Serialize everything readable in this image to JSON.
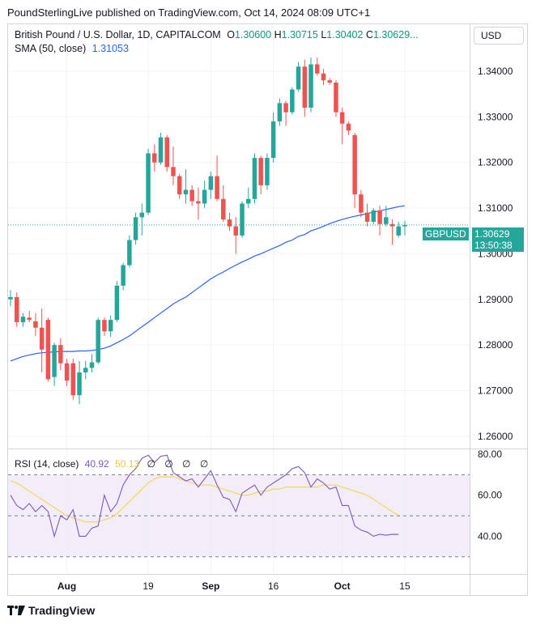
{
  "header": {
    "attribution": "PoundSterlingLive published on TradingView.com, Oct 14, 2024 08:09 UTC+1"
  },
  "legend": {
    "symbol": "British Pound / U.S. Dollar, 1D, CAPITALCOM",
    "o_label": "O",
    "o_value": "1.30600",
    "h_label": "H",
    "h_value": "1.30715",
    "l_label": "L",
    "l_value": "1.30402",
    "c_label": "C",
    "c_value": "1.30629...",
    "sma_label": "SMA (50, close)",
    "sma_value": "1.31053",
    "rsi_label": "RSI (14, close)",
    "rsi_value": "40.92",
    "rsi_ma_value": "50.13",
    "hidden_marks": "∅ ∅ ∅ ∅"
  },
  "currency_button": "USD",
  "price_tag": {
    "symbol": "GBPUSD",
    "price": "1.30629",
    "countdown": "13:50:38"
  },
  "footer": {
    "brand": "TradingView"
  },
  "colors": {
    "up": "#26a69a",
    "down": "#ef5350",
    "sma": "#2962ff",
    "rsi": "#7e57c2",
    "rsi_ma": "#f2d64c",
    "rsi_band": "#ede7f6"
  },
  "chart_data": [
    {
      "type": "candlestick",
      "title": "British Pound / U.S. Dollar, 1D, CAPITALCOM",
      "y_ticks": [
        "1.34000",
        "1.33000",
        "1.32000",
        "1.31000",
        "1.30000",
        "1.29000",
        "1.28000",
        "1.27000",
        "1.26000"
      ],
      "ylim": [
        1.2575,
        1.3485
      ],
      "x_ticks": [
        {
          "label": "Aug",
          "index": 9
        },
        {
          "label": "19",
          "index": 22
        },
        {
          "label": "Sep",
          "index": 32
        },
        {
          "label": "16",
          "index": 42
        },
        {
          "label": "Oct",
          "index": 53
        },
        {
          "label": "15",
          "index": 63
        }
      ],
      "candles": [
        {
          "o": 1.29,
          "h": 1.292,
          "l": 1.2885,
          "c": 1.2905
        },
        {
          "o": 1.2905,
          "h": 1.2915,
          "l": 1.284,
          "c": 1.285
        },
        {
          "o": 1.285,
          "h": 1.287,
          "l": 1.284,
          "c": 1.2862
        },
        {
          "o": 1.286,
          "h": 1.2875,
          "l": 1.285,
          "c": 1.2855
        },
        {
          "o": 1.2852,
          "h": 1.287,
          "l": 1.282,
          "c": 1.2838
        },
        {
          "o": 1.2838,
          "h": 1.288,
          "l": 1.274,
          "c": 1.279
        },
        {
          "o": 1.2855,
          "h": 1.286,
          "l": 1.272,
          "c": 1.2725
        },
        {
          "o": 1.273,
          "h": 1.2805,
          "l": 1.271,
          "c": 1.28
        },
        {
          "o": 1.28,
          "h": 1.2815,
          "l": 1.2745,
          "c": 1.276
        },
        {
          "o": 1.276,
          "h": 1.277,
          "l": 1.271,
          "c": 1.2722
        },
        {
          "o": 1.276,
          "h": 1.277,
          "l": 1.268,
          "c": 1.269
        },
        {
          "o": 1.269,
          "h": 1.2765,
          "l": 1.267,
          "c": 1.274
        },
        {
          "o": 1.274,
          "h": 1.2765,
          "l": 1.2725,
          "c": 1.275
        },
        {
          "o": 1.275,
          "h": 1.278,
          "l": 1.274,
          "c": 1.2762
        },
        {
          "o": 1.2762,
          "h": 1.286,
          "l": 1.2758,
          "c": 1.2855
        },
        {
          "o": 1.2855,
          "h": 1.286,
          "l": 1.282,
          "c": 1.283
        },
        {
          "o": 1.283,
          "h": 1.2865,
          "l": 1.2818,
          "c": 1.2855
        },
        {
          "o": 1.2855,
          "h": 1.294,
          "l": 1.285,
          "c": 1.293
        },
        {
          "o": 1.293,
          "h": 1.298,
          "l": 1.292,
          "c": 1.2975
        },
        {
          "o": 1.2975,
          "h": 1.304,
          "l": 1.297,
          "c": 1.303
        },
        {
          "o": 1.303,
          "h": 1.309,
          "l": 1.302,
          "c": 1.308
        },
        {
          "o": 1.308,
          "h": 1.311,
          "l": 1.304,
          "c": 1.309
        },
        {
          "o": 1.309,
          "h": 1.323,
          "l": 1.3085,
          "c": 1.322
        },
        {
          "o": 1.322,
          "h": 1.324,
          "l": 1.318,
          "c": 1.32
        },
        {
          "o": 1.32,
          "h": 1.3265,
          "l": 1.3195,
          "c": 1.3255
        },
        {
          "o": 1.3255,
          "h": 1.326,
          "l": 1.318,
          "c": 1.319
        },
        {
          "o": 1.319,
          "h": 1.3235,
          "l": 1.315,
          "c": 1.317
        },
        {
          "o": 1.317,
          "h": 1.3175,
          "l": 1.312,
          "c": 1.313
        },
        {
          "o": 1.313,
          "h": 1.3185,
          "l": 1.311,
          "c": 1.314
        },
        {
          "o": 1.314,
          "h": 1.315,
          "l": 1.3105,
          "c": 1.3115
        },
        {
          "o": 1.3115,
          "h": 1.3145,
          "l": 1.3075,
          "c": 1.311
        },
        {
          "o": 1.311,
          "h": 1.316,
          "l": 1.31,
          "c": 1.314
        },
        {
          "o": 1.314,
          "h": 1.318,
          "l": 1.312,
          "c": 1.317
        },
        {
          "o": 1.317,
          "h": 1.3215,
          "l": 1.3115,
          "c": 1.312
        },
        {
          "o": 1.312,
          "h": 1.315,
          "l": 1.307,
          "c": 1.3075
        },
        {
          "o": 1.3075,
          "h": 1.309,
          "l": 1.305,
          "c": 1.306
        },
        {
          "o": 1.306,
          "h": 1.308,
          "l": 1.3,
          "c": 1.304
        },
        {
          "o": 1.304,
          "h": 1.3115,
          "l": 1.3035,
          "c": 1.311
        },
        {
          "o": 1.311,
          "h": 1.3145,
          "l": 1.31,
          "c": 1.312
        },
        {
          "o": 1.312,
          "h": 1.322,
          "l": 1.311,
          "c": 1.321
        },
        {
          "o": 1.321,
          "h": 1.3215,
          "l": 1.313,
          "c": 1.315
        },
        {
          "o": 1.315,
          "h": 1.322,
          "l": 1.314,
          "c": 1.321
        },
        {
          "o": 1.321,
          "h": 1.331,
          "l": 1.32,
          "c": 1.329
        },
        {
          "o": 1.329,
          "h": 1.334,
          "l": 1.328,
          "c": 1.333
        },
        {
          "o": 1.333,
          "h": 1.3335,
          "l": 1.328,
          "c": 1.331
        },
        {
          "o": 1.331,
          "h": 1.3365,
          "l": 1.3305,
          "c": 1.336
        },
        {
          "o": 1.336,
          "h": 1.342,
          "l": 1.3355,
          "c": 1.341
        },
        {
          "o": 1.341,
          "h": 1.3425,
          "l": 1.33,
          "c": 1.332
        },
        {
          "o": 1.332,
          "h": 1.343,
          "l": 1.331,
          "c": 1.3415
        },
        {
          "o": 1.3415,
          "h": 1.343,
          "l": 1.339,
          "c": 1.3395
        },
        {
          "o": 1.3395,
          "h": 1.3405,
          "l": 1.337,
          "c": 1.338
        },
        {
          "o": 1.338,
          "h": 1.3385,
          "l": 1.337,
          "c": 1.3375
        },
        {
          "o": 1.3375,
          "h": 1.338,
          "l": 1.33,
          "c": 1.331
        },
        {
          "o": 1.331,
          "h": 1.332,
          "l": 1.324,
          "c": 1.3285
        },
        {
          "o": 1.3285,
          "h": 1.329,
          "l": 1.326,
          "c": 1.327
        },
        {
          "o": 1.326,
          "h": 1.3265,
          "l": 1.31,
          "c": 1.313
        },
        {
          "o": 1.313,
          "h": 1.314,
          "l": 1.308,
          "c": 1.309
        },
        {
          "o": 1.309,
          "h": 1.311,
          "l": 1.306,
          "c": 1.307
        },
        {
          "o": 1.307,
          "h": 1.31,
          "l": 1.3065,
          "c": 1.3095
        },
        {
          "o": 1.3095,
          "h": 1.3105,
          "l": 1.304,
          "c": 1.3065
        },
        {
          "o": 1.3065,
          "h": 1.3105,
          "l": 1.306,
          "c": 1.308
        },
        {
          "o": 1.3065,
          "h": 1.3075,
          "l": 1.302,
          "c": 1.306
        },
        {
          "o": 1.304,
          "h": 1.307,
          "l": 1.3035,
          "c": 1.306
        },
        {
          "o": 1.306,
          "h": 1.3072,
          "l": 1.304,
          "c": 1.3063
        }
      ],
      "sma": [
        1.2765,
        1.277,
        1.2775,
        1.2778,
        1.2781,
        1.2783,
        1.2784,
        1.2785,
        1.2786,
        1.2786,
        1.2786,
        1.2787,
        1.2787,
        1.2788,
        1.279,
        1.2793,
        1.2798,
        1.2805,
        1.2812,
        1.282,
        1.283,
        1.284,
        1.285,
        1.286,
        1.287,
        1.288,
        1.289,
        1.2898,
        1.2905,
        1.2915,
        1.2925,
        1.2935,
        1.2945,
        1.2953,
        1.296,
        1.2968,
        1.2975,
        1.2982,
        1.2988,
        1.2995,
        1.3,
        1.3006,
        1.3012,
        1.3018,
        1.3025,
        1.303,
        1.3038,
        1.3042,
        1.305,
        1.3055,
        1.306,
        1.3066,
        1.3071,
        1.3075,
        1.3079,
        1.3082,
        1.3085,
        1.3088,
        1.3091,
        1.3094,
        1.3097,
        1.31,
        1.3103,
        1.3105
      ]
    },
    {
      "type": "line",
      "title": "RSI (14, close)",
      "y_ticks": [
        "80.00",
        "60.00",
        "40.00"
      ],
      "ylim": [
        22,
        82
      ],
      "bands": [
        30,
        50,
        70
      ],
      "series": [
        {
          "name": "RSI",
          "values": [
            60,
            55,
            53,
            56,
            52,
            55,
            52,
            40,
            50,
            48,
            53,
            40,
            40,
            44,
            45,
            60,
            52,
            56,
            65,
            70,
            73,
            78,
            82,
            76,
            79,
            82,
            71,
            69,
            67,
            68,
            64,
            68,
            72,
            65,
            59,
            58,
            52,
            61,
            63,
            65,
            60,
            64,
            66,
            68,
            70,
            73,
            74,
            71,
            64,
            68,
            66,
            63,
            64,
            55,
            55,
            45,
            43,
            42,
            40,
            41,
            40.5,
            41,
            40.9
          ]
        },
        {
          "name": "RSI-based MA",
          "values": [
            67,
            66,
            64,
            62,
            60,
            58,
            56,
            54,
            52,
            50,
            49,
            48,
            47,
            47,
            47,
            48,
            49,
            51,
            54,
            57,
            60,
            63,
            66,
            68,
            69,
            69,
            69,
            68,
            67,
            66,
            65,
            65,
            65,
            64,
            63,
            62,
            61,
            60,
            60,
            61,
            62,
            62,
            63,
            63,
            64,
            64,
            64,
            64,
            64,
            64,
            65,
            65,
            65,
            64,
            63,
            62,
            61,
            60,
            58,
            56,
            54,
            52,
            50.13
          ]
        }
      ]
    }
  ]
}
